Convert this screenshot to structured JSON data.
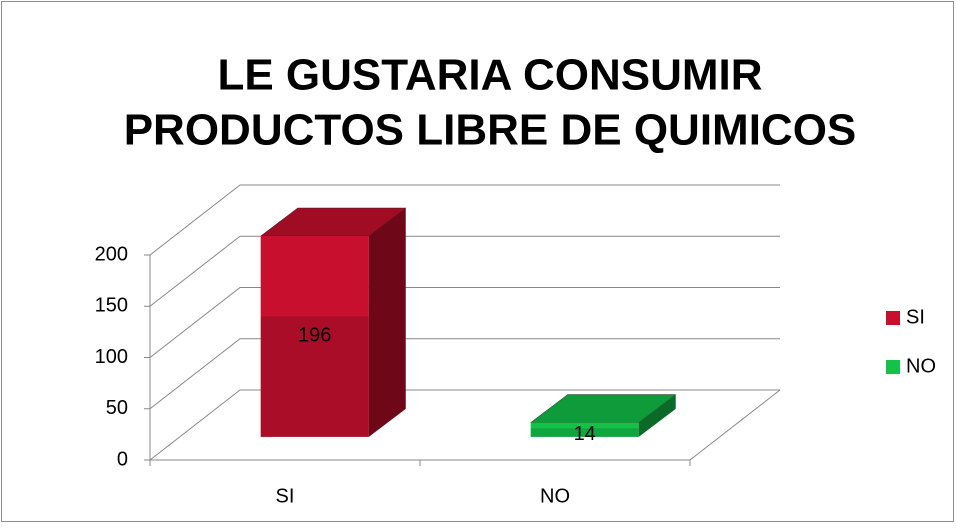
{
  "chart_data": {
    "type": "bar3d",
    "title": [
      "LE GUSTARIA CONSUMIR",
      "PRODUCTOS LIBRE DE QUIMICOS"
    ],
    "categories": [
      "SI",
      "NO"
    ],
    "values": [
      196,
      14
    ],
    "colors": [
      "#c8102e",
      "#14c24a"
    ],
    "ylim": [
      0,
      200
    ],
    "yticks": [
      0,
      50,
      100,
      150,
      200
    ],
    "grid": true,
    "legend": "right"
  }
}
